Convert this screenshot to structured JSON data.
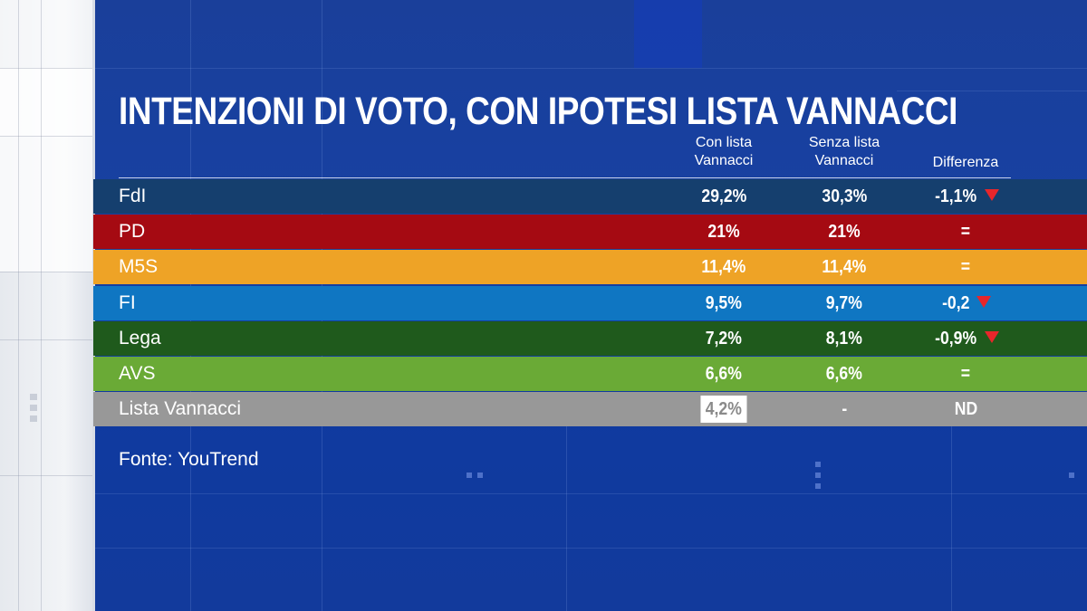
{
  "title": "INTENZIONI DI VOTO, CON IPOTESI LISTA VANNACCI",
  "headers": {
    "with_list_line1": "Con lista",
    "with_list_line2": "Vannacci",
    "without_list_line1": "Senza lista",
    "without_list_line2": "Vannacci",
    "difference": "Differenza"
  },
  "source": "Fonte: YouTrend",
  "colors": {
    "background": "#1741a2",
    "FdI": "#153f6e",
    "PD": "#a50a12",
    "M5S": "#eea326",
    "FI": "#0f76c2",
    "Lega": "#1f5a1c",
    "AVS": "#6aaa36",
    "Lista Vannacci": "#989898",
    "down_arrow": "#e8262b"
  },
  "chart_data": {
    "type": "table",
    "title": "INTENZIONI DI VOTO, CON IPOTESI LISTA VANNACCI",
    "columns": [
      "Con lista Vannacci",
      "Senza lista Vannacci",
      "Differenza"
    ],
    "rows": [
      {
        "party": "FdI",
        "with_list": "29,2%",
        "without_list": "30,3%",
        "difference": "-1,1%",
        "trend": "down",
        "with_value": 29.2,
        "without_value": 30.3
      },
      {
        "party": "PD",
        "with_list": "21%",
        "without_list": "21%",
        "difference": "=",
        "trend": "none",
        "with_value": 21,
        "without_value": 21
      },
      {
        "party": "M5S",
        "with_list": "11,4%",
        "without_list": "11,4%",
        "difference": "=",
        "trend": "none",
        "with_value": 11.4,
        "without_value": 11.4
      },
      {
        "party": "FI",
        "with_list": "9,5%",
        "without_list": "9,7%",
        "difference": "-0,2",
        "trend": "down",
        "with_value": 9.5,
        "without_value": 9.7
      },
      {
        "party": "Lega",
        "with_list": "7,2%",
        "without_list": "8,1%",
        "difference": "-0,9%",
        "trend": "down",
        "with_value": 7.2,
        "without_value": 8.1
      },
      {
        "party": "AVS",
        "with_list": "6,6%",
        "without_list": "6,6%",
        "difference": "=",
        "trend": "none",
        "with_value": 6.6,
        "without_value": 6.6
      },
      {
        "party": "Lista Vannacci",
        "with_list": "4,2%",
        "without_list": "-",
        "difference": "ND",
        "trend": "none",
        "with_value": 4.2,
        "without_value": null,
        "highlight": true
      }
    ]
  }
}
